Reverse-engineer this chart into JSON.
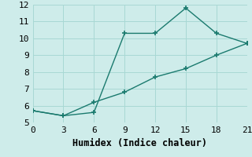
{
  "line1_x": [
    0,
    3,
    6,
    9,
    12,
    15,
    18,
    21
  ],
  "line1_y": [
    5.7,
    5.4,
    5.6,
    10.3,
    10.3,
    11.8,
    10.3,
    9.7
  ],
  "line2_x": [
    0,
    3,
    6,
    9,
    12,
    15,
    18,
    21
  ],
  "line2_y": [
    5.7,
    5.4,
    6.2,
    6.8,
    7.7,
    8.2,
    9.0,
    9.7
  ],
  "line_color": "#1a7a6e",
  "xlabel": "Humidex (Indice chaleur)",
  "ylim": [
    5,
    12
  ],
  "xlim": [
    0,
    21
  ],
  "yticks": [
    5,
    6,
    7,
    8,
    9,
    10,
    11,
    12
  ],
  "xticks": [
    0,
    3,
    6,
    9,
    12,
    15,
    18,
    21
  ],
  "bg_color": "#ceecea",
  "grid_color": "#a8d8d4",
  "font_family": "monospace",
  "xlabel_fontsize": 8.5,
  "tick_fontsize": 8
}
